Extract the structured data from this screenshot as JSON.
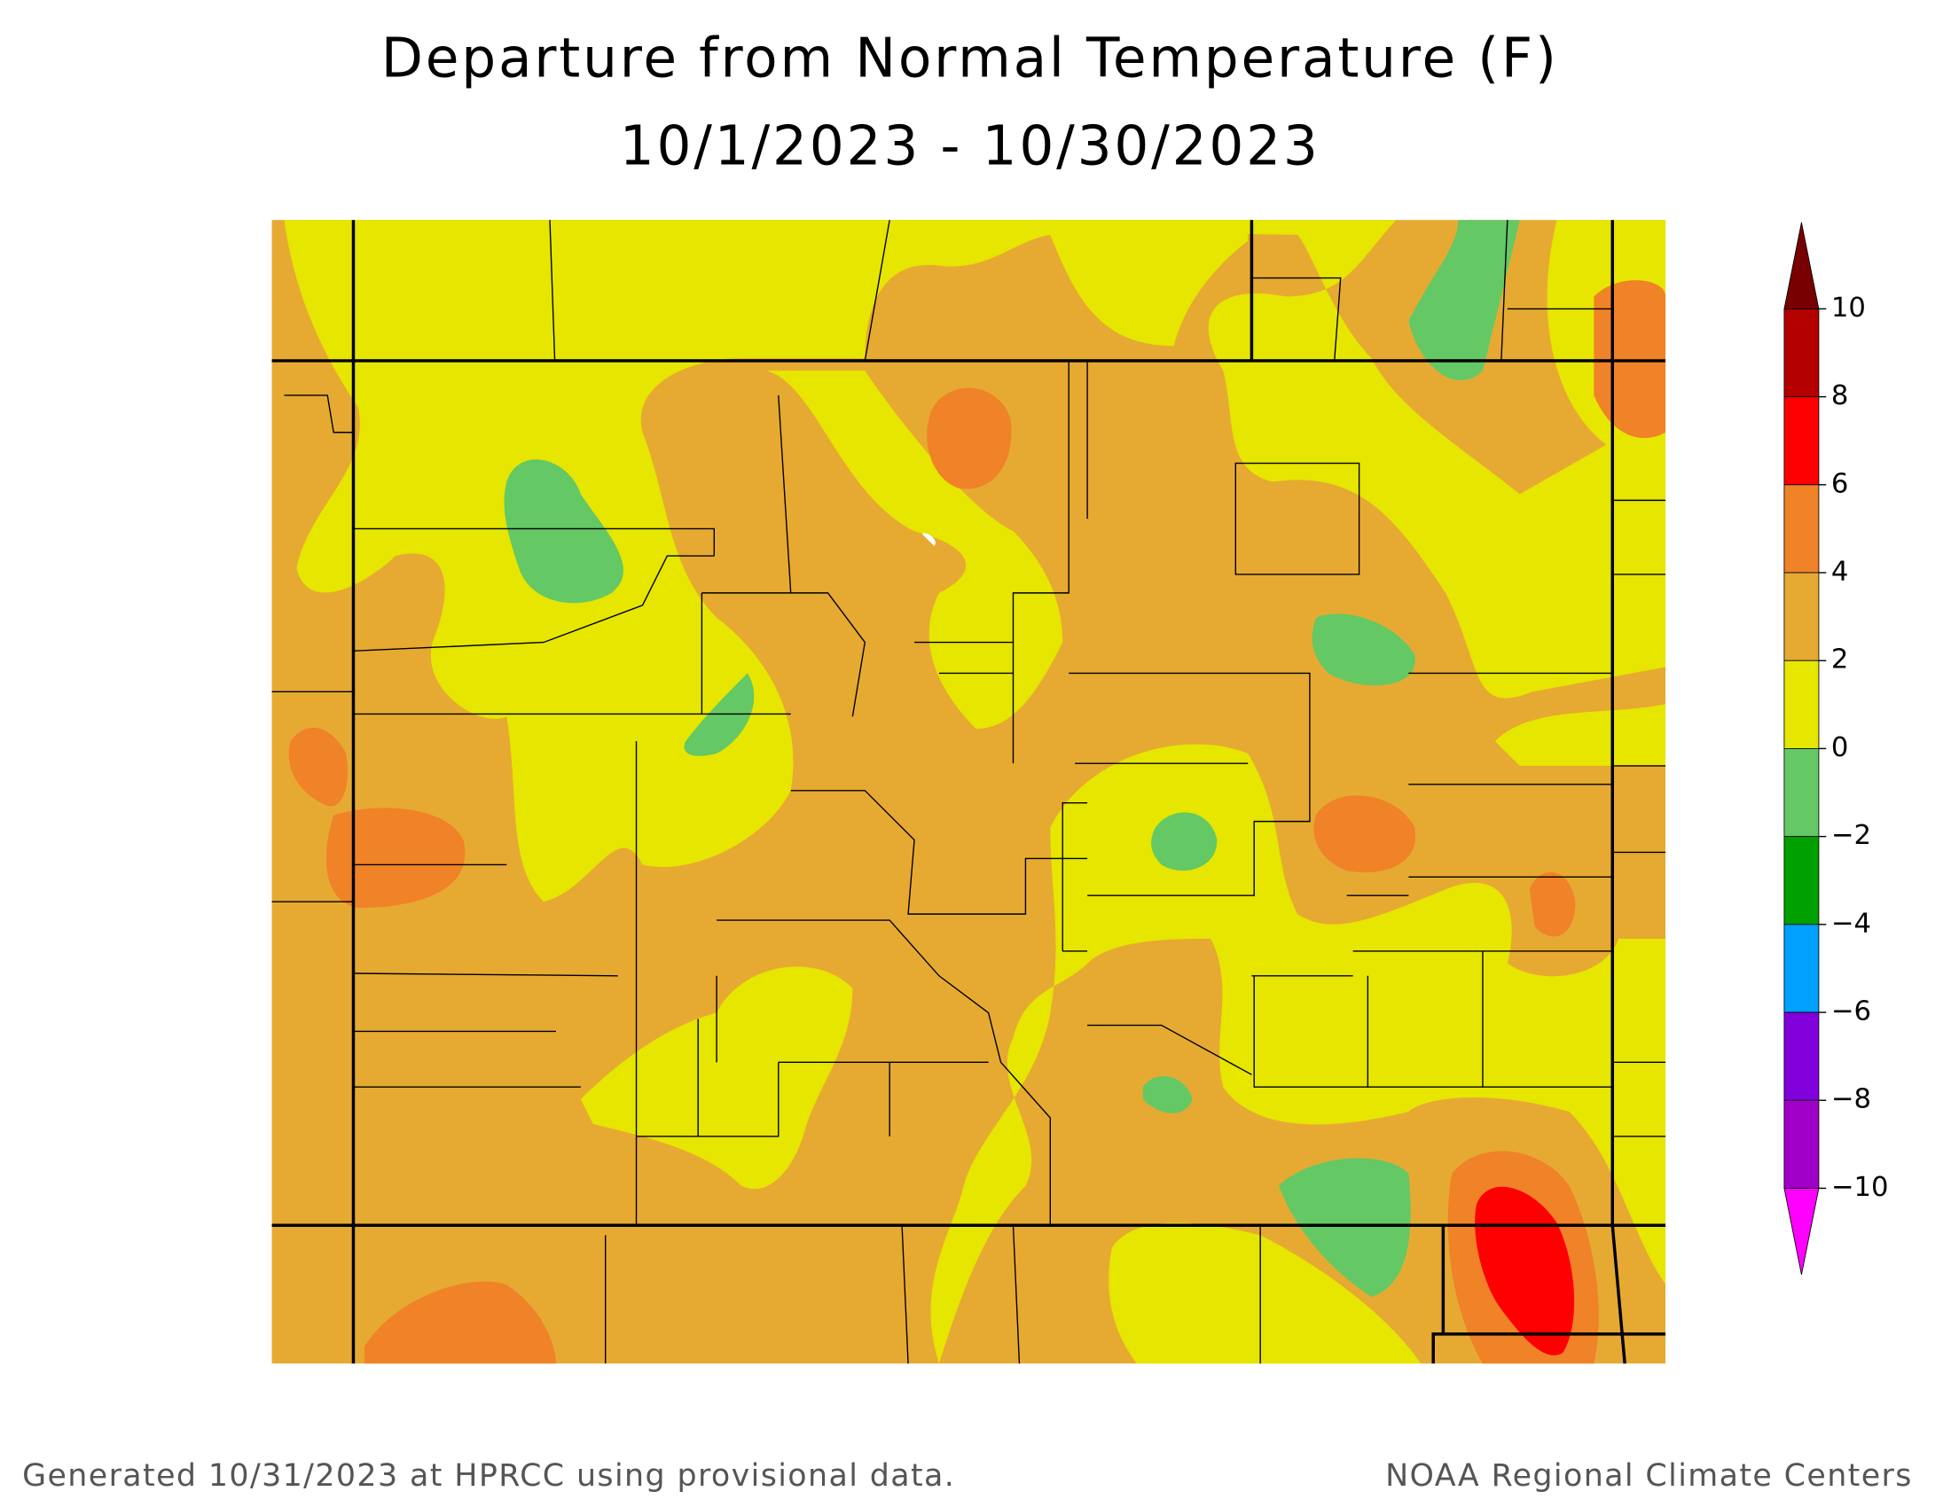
{
  "title": [
    "Departure from Normal Temperature (F)",
    "10/1/2023 - 10/30/2023"
  ],
  "legend": {
    "ticks": [
      10,
      8,
      6,
      4,
      2,
      0,
      {
        "value": -2,
        "label": "−2"
      },
      {
        "value": -4,
        "label": "−4"
      },
      {
        "value": -6,
        "label": "−6"
      },
      {
        "value": -8,
        "label": "−8"
      },
      {
        "value": -10,
        "label": "−10"
      }
    ],
    "colors": [
      "#b40000",
      "#ff0000",
      "#f08228",
      "#e6aa32",
      "#e6e600",
      "#64c864",
      "#00a000",
      "#00a0ff",
      "#8200dc",
      "#a000c8"
    ],
    "over_color": "#780000",
    "under_color": "#ff00ff"
  },
  "footer": {
    "left": "Generated 10/31/2023 at HPRCC using provisional data.",
    "right": "NOAA Regional Climate Centers"
  }
}
